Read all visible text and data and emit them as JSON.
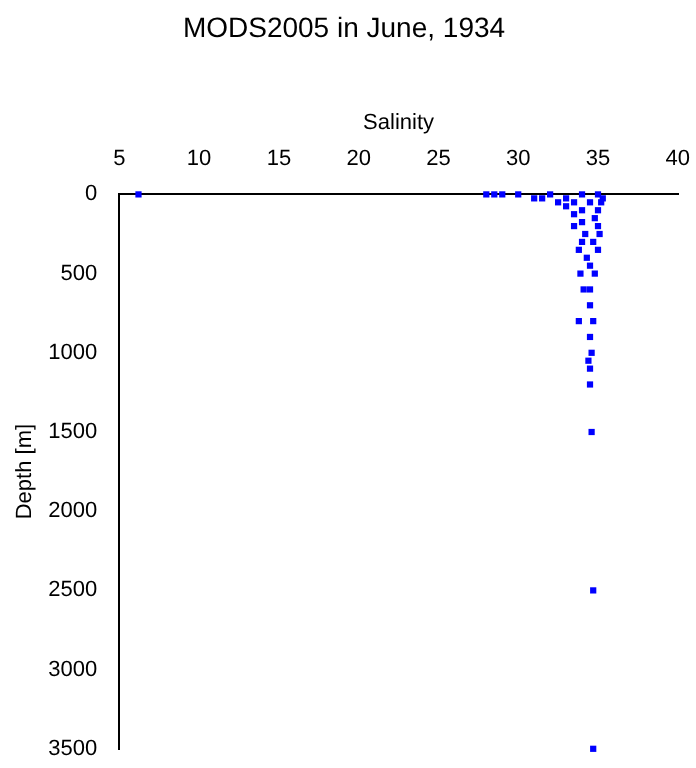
{
  "chart_data": {
    "type": "scatter",
    "title": "MODS2005 in June, 1934",
    "xlabel": "Salinity",
    "ylabel": "Depth [m]",
    "x": [
      6.2,
      28,
      28.5,
      29,
      30,
      31,
      32,
      33,
      34,
      35,
      35.3,
      31.5,
      32.5,
      33.5,
      34.5,
      35.2,
      33,
      34,
      35,
      33.5,
      34.8,
      34,
      35,
      33.5,
      34.2,
      35.1,
      34,
      34.7,
      33.8,
      35,
      34.3,
      34.5,
      33.9,
      34.8,
      34.5,
      34.1,
      34.5,
      33.8,
      34.7,
      34.5,
      34.6,
      34.4,
      34.5,
      34.5,
      34.6,
      34.7,
      34.7
    ],
    "series": [
      {
        "color": "#0000ff",
        "values": [
          0,
          0,
          0,
          0,
          0,
          25,
          0,
          25,
          0,
          0,
          25,
          25,
          50,
          50,
          50,
          50,
          75,
          100,
          100,
          125,
          150,
          175,
          200,
          200,
          250,
          250,
          300,
          300,
          350,
          350,
          400,
          450,
          500,
          500,
          600,
          600,
          700,
          800,
          800,
          900,
          1000,
          1050,
          1100,
          1200,
          1500,
          2500,
          3500
        ]
      }
    ],
    "xlim": [
      5,
      40
    ],
    "xticks": [
      5,
      10,
      15,
      20,
      25,
      30,
      35,
      40
    ],
    "ylim": [
      3500,
      0
    ],
    "yticks": [
      0,
      500,
      1000,
      1500,
      2000,
      2500,
      3000,
      3500
    ],
    "grid": false,
    "legend": false,
    "marker": "square"
  }
}
